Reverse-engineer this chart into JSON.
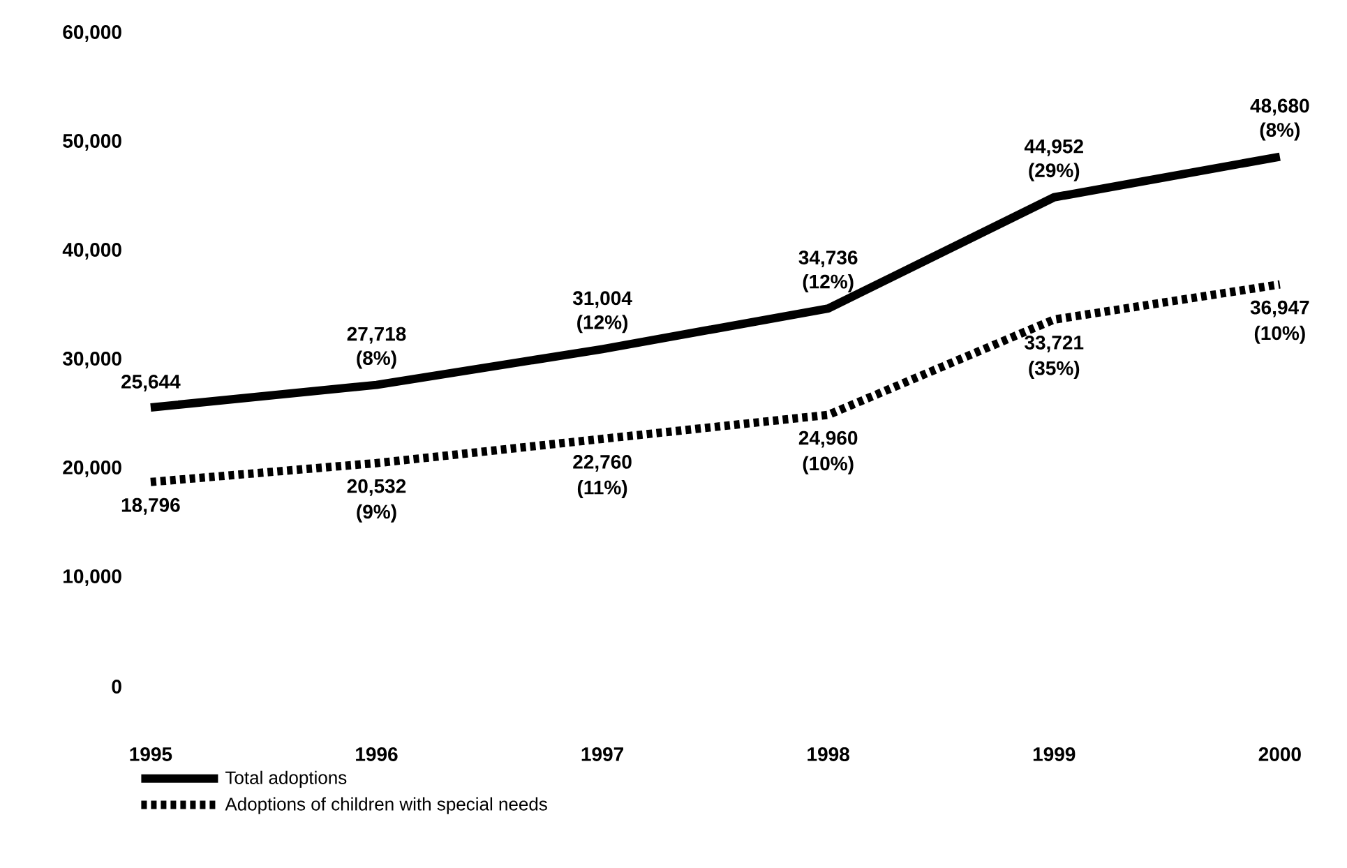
{
  "chart_data": {
    "type": "line",
    "categories": [
      "1995",
      "1996",
      "1997",
      "1998",
      "1999",
      "2000"
    ],
    "series": [
      {
        "name": "Total adoptions",
        "color": "#000000",
        "line_style": "solid",
        "values": [
          25644,
          27718,
          31004,
          34736,
          44952,
          48680
        ],
        "value_labels": [
          "25,644",
          "27,718",
          "31,004",
          "34,736",
          "44,952",
          "48,680"
        ]
      },
      {
        "name": "Adoptions of children with special needs",
        "color": "#000000",
        "line_style": "dotted",
        "values": [
          18796,
          20532,
          22760,
          24960,
          33721,
          36947
        ],
        "value_labels": [
          "18,796",
          "20,532",
          "22,760",
          "24,960",
          "33,721",
          "36,947"
        ]
      }
    ],
    "annotations": [
      {
        "text": "(8%)",
        "x": "1996",
        "y": 27718
      },
      {
        "text": "(12%)",
        "x": "1997",
        "y": 31004
      },
      {
        "text": "(12%)",
        "x": "1998",
        "y": 34736
      },
      {
        "text": "(29%)",
        "x": "1999",
        "y": 44952
      },
      {
        "text": "(8%)",
        "x": "2000",
        "y": 48680
      },
      {
        "text": "(9%)",
        "x": "1996",
        "y": 20532
      },
      {
        "text": "(11%)",
        "x": "1997",
        "y": 22760
      },
      {
        "text": "(10%)",
        "x": "1998",
        "y": 24960
      },
      {
        "text": "(35%)",
        "x": "1999",
        "y": 33721
      },
      {
        "text": "(10%)",
        "x": "2000",
        "y": 36947
      }
    ],
    "ylim": [
      0,
      60000
    ],
    "yticks": [
      0,
      {
        "value": 10000,
        "label": "10,000"
      },
      {
        "value": 20000,
        "label": "20,000"
      },
      {
        "value": 30000,
        "label": "30,000"
      },
      {
        "value": 40000,
        "label": "40,000"
      },
      {
        "value": 50000,
        "label": "50,000"
      },
      {
        "value": 60000,
        "label": "60,000"
      }
    ],
    "legend": "bottom left",
    "marker": "none"
  }
}
